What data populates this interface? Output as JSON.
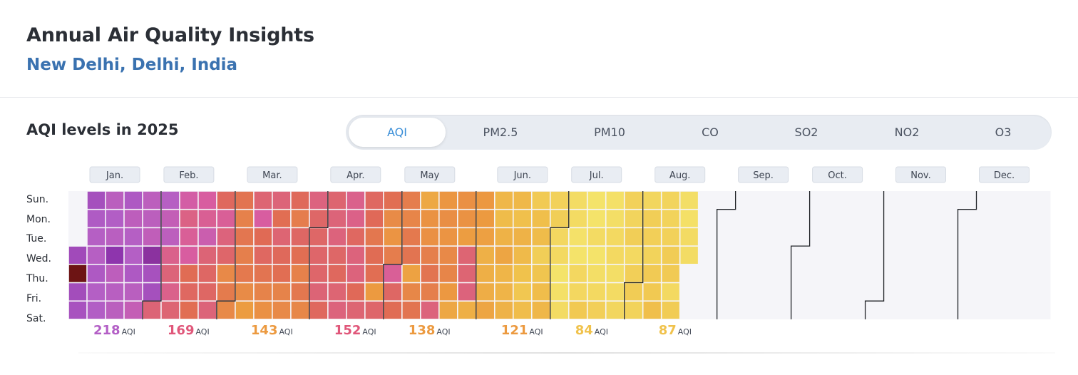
{
  "header": {
    "title": "Annual Air Quality Insights",
    "subtitle": "New Delhi, Delhi, India"
  },
  "section": {
    "title": "AQI levels in 2025"
  },
  "tabs": [
    {
      "label": "AQI",
      "active": true
    },
    {
      "label": "PM2.5",
      "active": false
    },
    {
      "label": "PM10",
      "active": false
    },
    {
      "label": "CO",
      "active": false
    },
    {
      "label": "SO2",
      "active": false
    },
    {
      "label": "NO2",
      "active": false
    },
    {
      "label": "O3",
      "active": false
    }
  ],
  "colors": {
    "scale": [
      "#f4e36a",
      "#f0c24c",
      "#ec9a40",
      "#e06a55",
      "#d85da0",
      "#b35fc6",
      "#8e35ad",
      "#6d1414"
    ],
    "future": "#f5f5f9",
    "title_blue": "#3a72b0"
  },
  "chart_data": {
    "type": "heatmap",
    "year": 2025,
    "days": [
      "Sun.",
      "Mon.",
      "Tue.",
      "Wed.",
      "Thu.",
      "Fri.",
      "Sat."
    ],
    "months": [
      "Jan.",
      "Feb.",
      "Mar.",
      "Apr.",
      "May",
      "Jun.",
      "Jul.",
      "Aug.",
      "Sep.",
      "Oct.",
      "Nov.",
      "Dec."
    ],
    "monthly_avg": [
      {
        "value": "218",
        "unit": "AQI",
        "color": "#b35fc6"
      },
      {
        "value": "169",
        "unit": "AQI",
        "color": "#e0577a"
      },
      {
        "value": "143",
        "unit": "AQI",
        "color": "#ec9a40"
      },
      {
        "value": "152",
        "unit": "AQI",
        "color": "#e0577a"
      },
      {
        "value": "138",
        "unit": "AQI",
        "color": "#ec9a40"
      },
      {
        "value": "121",
        "unit": "AQI",
        "color": "#ec9a40"
      },
      {
        "value": "84",
        "unit": "AQI",
        "color": "#f0c24c"
      },
      {
        "value": "87",
        "unit": "AQI",
        "color": "#f0c24c"
      }
    ],
    "weekly_aqi": [
      [
        null,
        null,
        null,
        230,
        300,
        228,
        224
      ],
      [
        226,
        218,
        213,
        212,
        219,
        214,
        216
      ],
      [
        207,
        216,
        209,
        245,
        204,
        210,
        207
      ],
      [
        219,
        204,
        213,
        214,
        219,
        208,
        197
      ],
      [
        205,
        206,
        201,
        250,
        225,
        226,
        161
      ],
      [
        212,
        198,
        205,
        168,
        162,
        168,
        160
      ],
      [
        180,
        166,
        172,
        175,
        149,
        154,
        148
      ],
      [
        175,
        171,
        190,
        161,
        155,
        155,
        162
      ],
      [
        153,
        172,
        163,
        157,
        134,
        141,
        134
      ],
      [
        145,
        138,
        144,
        139,
        142,
        133,
        124
      ],
      [
        160,
        175,
        150,
        154,
        145,
        137,
        130
      ],
      [
        162,
        148,
        160,
        152,
        148,
        137,
        134
      ],
      [
        152,
        140,
        155,
        148,
        138,
        143,
        135
      ],
      [
        164,
        156,
        156,
        157,
        157,
        161,
        153
      ],
      [
        159,
        162,
        163,
        156,
        153,
        160,
        163
      ],
      [
        168,
        167,
        154,
        163,
        163,
        151,
        160
      ],
      [
        154,
        151,
        143,
        149,
        148,
        125,
        157
      ],
      [
        148,
        133,
        128,
        140,
        172,
        155,
        149
      ],
      [
        140,
        136,
        142,
        145,
        120,
        135,
        145
      ],
      [
        116,
        129,
        130,
        139,
        145,
        139,
        163
      ],
      [
        127,
        131,
        128,
        134,
        136,
        126,
        117
      ],
      [
        130,
        129,
        123,
        160,
        160,
        163,
        112
      ],
      [
        126,
        125,
        121,
        111,
        112,
        113,
        118
      ],
      [
        107,
        104,
        110,
        118,
        108,
        109,
        110
      ],
      [
        106,
        101,
        110,
        105,
        100,
        97,
        103
      ],
      [
        95,
        102,
        104,
        93,
        98,
        103,
        107
      ],
      [
        91,
        93,
        87,
        86,
        80,
        82,
        85
      ],
      [
        84,
        85,
        81,
        80,
        87,
        87,
        96
      ],
      [
        79,
        80,
        85,
        79,
        83,
        86,
        92
      ],
      [
        82,
        83,
        86,
        86,
        83,
        85,
        88
      ],
      [
        91,
        89,
        93,
        86,
        92,
        94,
        90
      ],
      [
        88,
        93,
        92,
        90,
        95,
        96,
        102
      ],
      [
        89,
        90,
        91,
        94,
        95,
        86,
        94
      ],
      [
        83,
        82,
        85,
        84,
        null,
        null,
        null
      ]
    ],
    "total_weeks": 53
  }
}
